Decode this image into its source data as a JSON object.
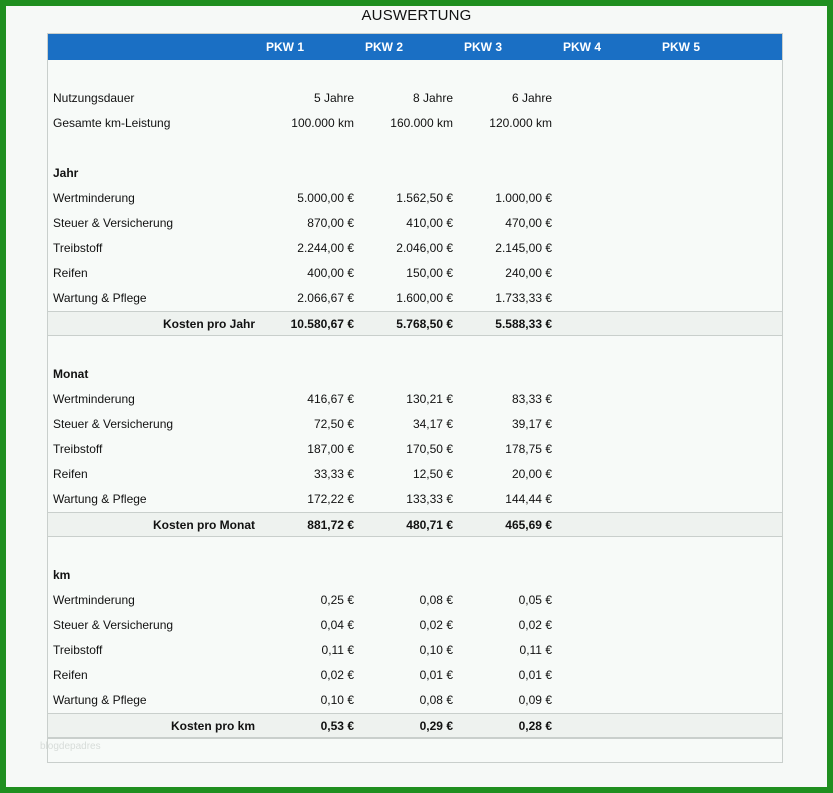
{
  "title": "AUSWERTUNG",
  "columns": [
    "PKW 1",
    "PKW 2",
    "PKW 3",
    "PKW 4",
    "PKW 5"
  ],
  "general": [
    {
      "label": "Nutzungsdauer",
      "values": [
        "5 Jahre",
        "8 Jahre",
        "6 Jahre"
      ]
    },
    {
      "label": "Gesamte km-Leistung",
      "values": [
        "100.000 km",
        "160.000 km",
        "120.000 km"
      ]
    }
  ],
  "sections": [
    {
      "title": "Jahr",
      "rows": [
        {
          "label": "Wertminderung",
          "values": [
            "5.000,00 €",
            "1.562,50 €",
            "1.000,00 €"
          ]
        },
        {
          "label": "Steuer & Versicherung",
          "values": [
            "870,00 €",
            "410,00 €",
            "470,00 €"
          ]
        },
        {
          "label": "Treibstoff",
          "values": [
            "2.244,00 €",
            "2.046,00 €",
            "2.145,00 €"
          ]
        },
        {
          "label": "Reifen",
          "values": [
            "400,00 €",
            "150,00 €",
            "240,00 €"
          ]
        },
        {
          "label": "Wartung & Pflege",
          "values": [
            "2.066,67 €",
            "1.600,00 €",
            "1.733,33 €"
          ]
        }
      ],
      "total": {
        "label": "Kosten pro Jahr",
        "values": [
          "10.580,67 €",
          "5.768,50 €",
          "5.588,33 €"
        ]
      }
    },
    {
      "title": "Monat",
      "rows": [
        {
          "label": "Wertminderung",
          "values": [
            "416,67 €",
            "130,21 €",
            "83,33 €"
          ]
        },
        {
          "label": "Steuer & Versicherung",
          "values": [
            "72,50 €",
            "34,17 €",
            "39,17 €"
          ]
        },
        {
          "label": "Treibstoff",
          "values": [
            "187,00 €",
            "170,50 €",
            "178,75 €"
          ]
        },
        {
          "label": "Reifen",
          "values": [
            "33,33 €",
            "12,50 €",
            "20,00 €"
          ]
        },
        {
          "label": "Wartung & Pflege",
          "values": [
            "172,22 €",
            "133,33 €",
            "144,44 €"
          ]
        }
      ],
      "total": {
        "label": "Kosten pro Monat",
        "values": [
          "881,72 €",
          "480,71 €",
          "465,69 €"
        ]
      }
    },
    {
      "title": "km",
      "rows": [
        {
          "label": "Wertminderung",
          "values": [
            "0,25 €",
            "0,08 €",
            "0,05 €"
          ]
        },
        {
          "label": "Steuer & Versicherung",
          "values": [
            "0,04 €",
            "0,02 €",
            "0,02 €"
          ]
        },
        {
          "label": "Treibstoff",
          "values": [
            "0,11 €",
            "0,10 €",
            "0,11 €"
          ]
        },
        {
          "label": "Reifen",
          "values": [
            "0,02 €",
            "0,01 €",
            "0,01 €"
          ]
        },
        {
          "label": "Wartung & Pflege",
          "values": [
            "0,10 €",
            "0,08 €",
            "0,09 €"
          ]
        }
      ],
      "total": {
        "label": "Kosten pro km",
        "values": [
          "0,53 €",
          "0,29 €",
          "0,28 €"
        ]
      }
    }
  ],
  "watermark": "blogdepadres"
}
